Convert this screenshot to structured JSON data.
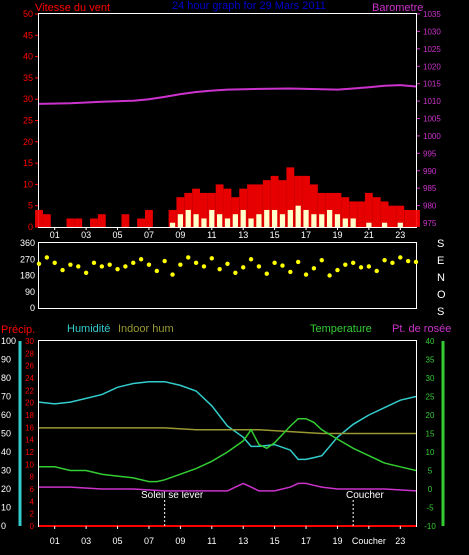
{
  "header": {
    "left_label": "Vitesse du vent",
    "title": "24 hour graph for 29 Mars 2011",
    "right_label": "Barometre"
  },
  "colors": {
    "wind": "#ff0000",
    "gust": "#ff0000",
    "avg_wind": "#ffffcc",
    "barometer": "#cc33cc",
    "direction": "#ffff00",
    "humidity": "#33cccc",
    "indoor_hum": "#999933",
    "temperature": "#33cc33",
    "dew_point": "#cc33cc",
    "rain": "#ff0000",
    "title": "#0000cc",
    "axis": "#ffffff"
  },
  "x_ticks": [
    "01",
    "03",
    "05",
    "07",
    "09",
    "11",
    "13",
    "15",
    "17",
    "19",
    "21",
    "23"
  ],
  "x_ticks_bottom": [
    "01",
    "03",
    "05",
    "07",
    "09",
    "11",
    "13",
    "15",
    "17",
    "19",
    "Coucher",
    "23"
  ],
  "chart_data": [
    {
      "type": "line",
      "title": "24 hour graph for 29 Mars 2011",
      "ylabel": "Vitesse du vent",
      "y2label": "Barometre",
      "ylim": [
        0,
        50
      ],
      "y2lim": [
        975,
        1035
      ],
      "yticks": [
        0,
        5,
        10,
        15,
        20,
        25,
        30,
        35,
        40,
        45,
        50
      ],
      "y2ticks": [
        975,
        980,
        985,
        990,
        995,
        1000,
        1005,
        1010,
        1015,
        1020,
        1025,
        1030,
        1035
      ],
      "xlim": [
        0,
        24
      ],
      "series": [
        {
          "name": "Barometre",
          "axis": "right",
          "x": [
            0,
            2,
            4,
            6,
            7,
            8,
            9,
            10,
            11,
            12,
            14,
            16,
            18,
            19,
            20,
            21,
            22,
            23,
            24
          ],
          "values": [
            1009.2,
            1009.4,
            1009.8,
            1010.1,
            1010.5,
            1011.2,
            1012.0,
            1012.6,
            1013.0,
            1013.3,
            1013.5,
            1013.6,
            1013.4,
            1013.3,
            1013.6,
            1014.0,
            1014.4,
            1014.6,
            1014.2
          ]
        },
        {
          "name": "Rafales",
          "axis": "left",
          "x": [
            0,
            0.5,
            1,
            1.5,
            2,
            2.5,
            3,
            3.5,
            4,
            4.5,
            5,
            5.5,
            6,
            6.5,
            7,
            7.5,
            8,
            8.5,
            9,
            9.5,
            10,
            10.5,
            11,
            11.5,
            12,
            12.5,
            13,
            13.5,
            14,
            14.5,
            15,
            15.5,
            16,
            16.5,
            17,
            17.5,
            18,
            18.5,
            19,
            19.5,
            20,
            20.5,
            21,
            21.5,
            22,
            22.5,
            23,
            23.5,
            24
          ],
          "values": [
            4,
            3,
            0,
            0,
            2,
            2,
            0,
            2,
            3,
            0,
            0,
            3,
            0,
            2,
            4,
            0,
            0,
            4,
            7,
            8,
            9,
            8,
            8,
            10,
            9,
            7,
            9,
            10,
            10,
            11,
            12,
            11,
            14,
            12,
            12,
            10,
            8,
            8,
            8,
            7,
            6,
            6,
            8,
            7,
            6,
            5,
            5,
            4,
            4
          ]
        },
        {
          "name": "Vent moyen",
          "axis": "left",
          "x": [
            0,
            1,
            2,
            3,
            4,
            5,
            6,
            7,
            8,
            8.5,
            9,
            9.5,
            10,
            10.5,
            11,
            11.5,
            12,
            12.5,
            13,
            13.5,
            14,
            14.5,
            15,
            15.5,
            16,
            16.5,
            17,
            17.5,
            18,
            18.5,
            19,
            19.5,
            20,
            21,
            22,
            23,
            24
          ],
          "values": [
            0,
            0,
            0,
            0,
            0,
            0,
            0,
            0,
            0,
            1,
            3,
            4,
            3,
            2,
            4,
            3,
            2,
            3,
            4,
            2,
            3,
            4,
            4,
            3,
            4,
            5,
            4,
            3,
            3,
            4,
            3,
            2,
            2,
            1,
            1,
            1,
            0
          ]
        }
      ]
    },
    {
      "type": "scatter",
      "ylabel": "Direction",
      "ylim": [
        0,
        360
      ],
      "yticks": [
        0,
        90,
        180,
        270,
        360
      ],
      "right_labels": [
        "S",
        "E",
        "N",
        "O",
        "S"
      ],
      "xlim": [
        0,
        24
      ],
      "series": [
        {
          "name": "Direction du vent",
          "x": [
            0,
            0.5,
            1,
            1.5,
            2,
            2.5,
            3,
            3.5,
            4,
            4.5,
            5,
            5.5,
            6,
            6.5,
            7,
            7.5,
            8,
            8.5,
            9,
            9.5,
            10,
            10.5,
            11,
            11.5,
            12,
            12.5,
            13,
            13.5,
            14,
            14.5,
            15,
            15.5,
            16,
            16.5,
            17,
            17.5,
            18,
            18.5,
            19,
            19.5,
            20,
            20.5,
            21,
            21.5,
            22,
            22.5,
            23,
            23.5,
            24
          ],
          "values": [
            245,
            280,
            250,
            210,
            240,
            230,
            195,
            250,
            230,
            240,
            215,
            230,
            250,
            270,
            240,
            205,
            260,
            185,
            240,
            280,
            250,
            230,
            275,
            215,
            245,
            195,
            225,
            270,
            230,
            190,
            250,
            235,
            200,
            255,
            185,
            220,
            265,
            180,
            210,
            240,
            250,
            225,
            230,
            205,
            265,
            250,
            280,
            260,
            255
          ]
        }
      ]
    },
    {
      "type": "line",
      "left_axes": [
        {
          "label": "Précip.",
          "ylim": [
            0,
            30
          ],
          "yticks": [
            0,
            2,
            4,
            6,
            8,
            10,
            12,
            14,
            16,
            18,
            20,
            22,
            24,
            26,
            28,
            30
          ]
        },
        {
          "label": "Humidité",
          "ylim": [
            0,
            100
          ],
          "yticks": [
            0,
            10,
            20,
            30,
            40,
            50,
            60,
            70,
            80,
            90,
            100
          ]
        }
      ],
      "right_axis": {
        "label": "Temperature",
        "ylim": [
          -10,
          40
        ],
        "yticks": [
          -10,
          -5,
          0,
          5,
          10,
          15,
          20,
          25,
          30,
          35,
          40
        ]
      },
      "xlim": [
        0,
        24
      ],
      "annotations": [
        {
          "text": "Soleil se lever",
          "x": 8
        },
        {
          "text": "Coucher",
          "x": 20
        }
      ],
      "series": [
        {
          "name": "Humidité",
          "axis": "Humidité",
          "x": [
            0,
            1,
            2,
            3,
            4,
            5,
            6,
            7,
            8,
            9,
            10,
            11,
            12,
            13,
            13.5,
            14,
            15,
            16,
            16.5,
            17,
            17.5,
            18,
            19,
            20,
            21,
            22,
            23,
            24
          ],
          "values": [
            67,
            66,
            67,
            69,
            71,
            75,
            77,
            78,
            78,
            76,
            73,
            65,
            54,
            48,
            43,
            43,
            44,
            41,
            36,
            36,
            37,
            38,
            48,
            55,
            60,
            64,
            68,
            70
          ]
        },
        {
          "name": "Indoor hum",
          "axis": "Humidité",
          "x": [
            0,
            2,
            4,
            6,
            8,
            10,
            12,
            14,
            16,
            18,
            20,
            22,
            24
          ],
          "values": [
            53,
            53,
            53,
            53,
            53,
            52,
            52,
            52,
            51,
            50,
            50,
            50,
            50
          ]
        },
        {
          "name": "Temperature",
          "axis": "Temperature",
          "x": [
            0,
            1,
            2,
            3,
            4,
            5,
            6,
            7,
            7.5,
            8,
            9,
            10,
            11,
            12,
            13,
            13.5,
            14,
            14.5,
            15,
            16,
            16.5,
            17,
            17.5,
            18,
            19,
            20,
            21,
            22,
            23,
            24
          ],
          "values": [
            6,
            6,
            5,
            5,
            4,
            3.5,
            3,
            2,
            2,
            2.5,
            4,
            5.5,
            7.5,
            10,
            13,
            16,
            12,
            11,
            12.5,
            17,
            19,
            19,
            18,
            16,
            13.5,
            11,
            9,
            7,
            6,
            5
          ]
        },
        {
          "name": "Pt. de rosée",
          "axis": "Temperature",
          "x": [
            0,
            2,
            4,
            6,
            8,
            10,
            12,
            12.5,
            13,
            13.5,
            14,
            14.5,
            15,
            16,
            16.5,
            17,
            17.5,
            18,
            19,
            20,
            22,
            24
          ],
          "values": [
            0.5,
            0.5,
            0,
            0,
            -0.5,
            -0.5,
            -0.5,
            0.5,
            1.5,
            0.5,
            -0.5,
            -0.5,
            -0.5,
            0.5,
            1.5,
            1.5,
            1,
            0.5,
            0,
            0,
            0,
            -0.5
          ]
        },
        {
          "name": "Précip.",
          "axis": "Précip.",
          "x": [
            0,
            24
          ],
          "values": [
            0,
            0
          ]
        }
      ]
    }
  ],
  "bottom_labels": {
    "precip": "Précip.",
    "humidity": "Humidité",
    "indoor_hum": "Indoor hum",
    "temperature": "Temperature",
    "dew_point": "Pt. de rosée",
    "sunrise": "Soleil se lever",
    "sunset": "Coucher"
  }
}
